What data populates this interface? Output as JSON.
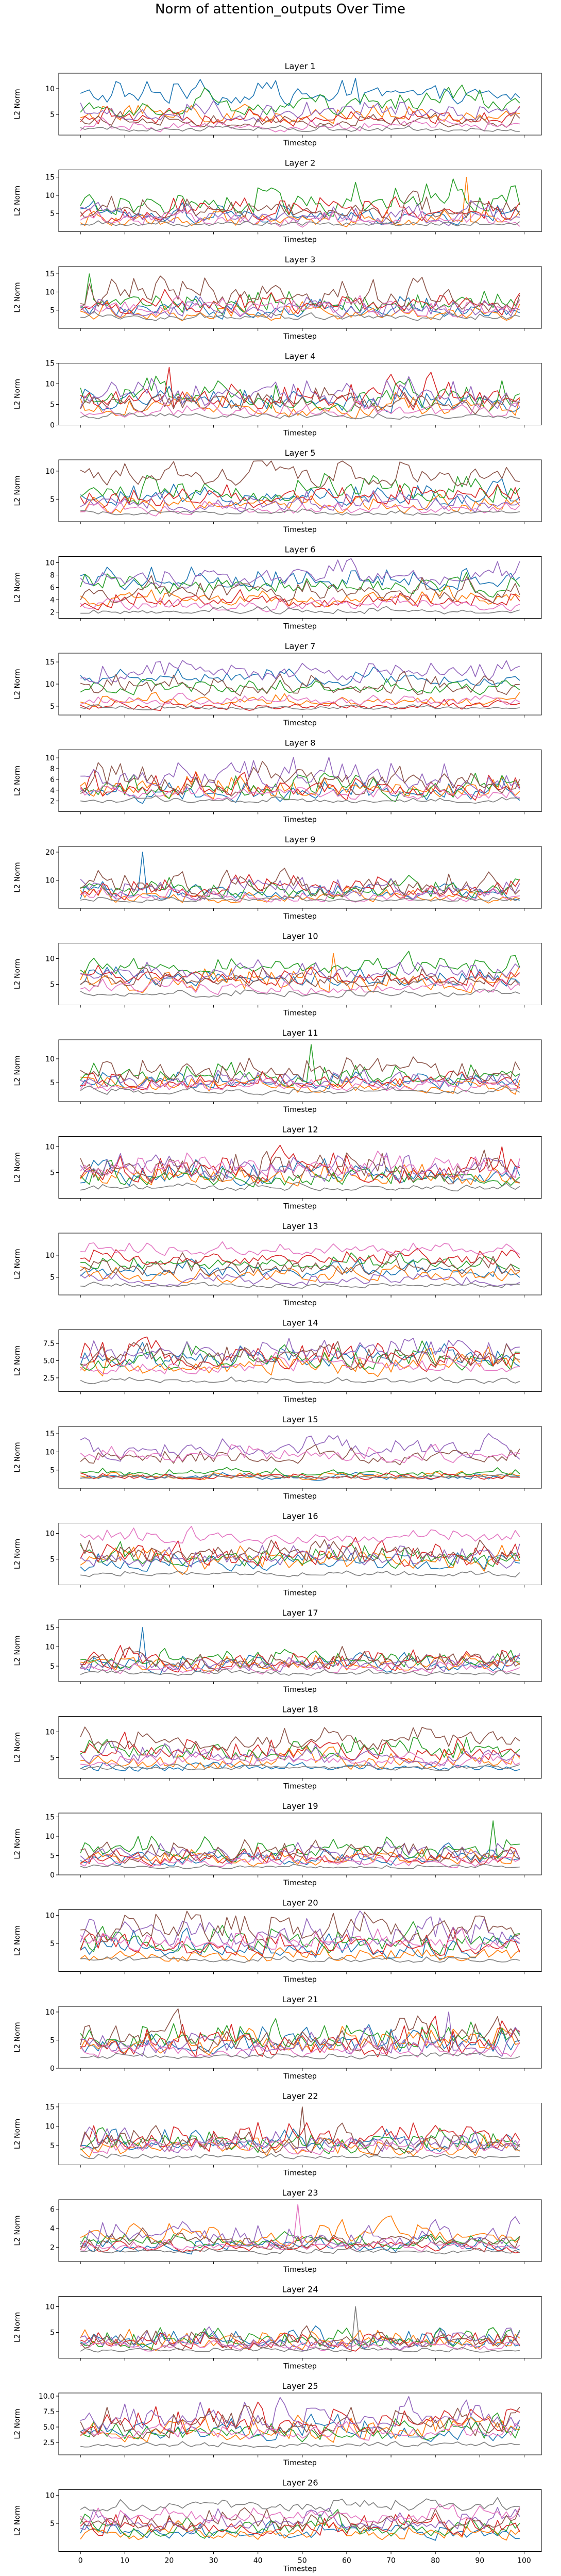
{
  "figure": {
    "title": "Norm of attention_outputs Over Time"
  },
  "colors": [
    "#1f77b4",
    "#ff7f0e",
    "#2ca02c",
    "#d62728",
    "#9467bd",
    "#8c564b",
    "#e377c2",
    "#7f7f7f"
  ],
  "chart_data": [
    {
      "type": "line",
      "title": "Layer 1",
      "xlabel": "Timestep",
      "ylabel": "L2 Norm",
      "xlim": [
        0,
        99
      ],
      "ylim": [
        1,
        13
      ],
      "yticks": [
        5,
        10
      ],
      "xticks": [],
      "grid": false,
      "series_levels": [
        8.5,
        4.5,
        6.5,
        4,
        5,
        3.5,
        2.5,
        2
      ],
      "series_amplitude": [
        2.5,
        1.8,
        2.5,
        1.8,
        2.2,
        1.5,
        1.2,
        0.6
      ],
      "note_peaks": [
        [
          62,
          12
        ]
      ]
    },
    {
      "type": "line",
      "title": "Layer 2",
      "xlabel": "Timestep",
      "ylabel": "L2 Norm",
      "xlim": [
        0,
        99
      ],
      "ylim": [
        0,
        17
      ],
      "yticks": [
        5,
        10,
        15
      ],
      "xticks": [],
      "grid": false,
      "series_levels": [
        4,
        3,
        8,
        5,
        4,
        5,
        3,
        2
      ],
      "series_amplitude": [
        3,
        2.5,
        5,
        3.5,
        3,
        3.5,
        2.5,
        0.8
      ],
      "note_peaks": [
        [
          87,
          15
        ]
      ]
    },
    {
      "type": "line",
      "title": "Layer 3",
      "xlabel": "Timestep",
      "ylabel": "L2 Norm",
      "xlim": [
        0,
        99
      ],
      "ylim": [
        0,
        17
      ],
      "yticks": [
        5,
        10,
        15
      ],
      "xticks": [],
      "grid": false,
      "series_levels": [
        5,
        4,
        6,
        6,
        5,
        8,
        5,
        3
      ],
      "series_amplitude": [
        3,
        2.5,
        3.5,
        3.5,
        3,
        4.5,
        3,
        1.2
      ],
      "note_peaks": [
        [
          2,
          15
        ]
      ]
    },
    {
      "type": "line",
      "title": "Layer 4",
      "xlabel": "Timestep",
      "ylabel": "L2 Norm",
      "xlim": [
        0,
        99
      ],
      "ylim": [
        0,
        15
      ],
      "yticks": [
        0,
        5,
        10,
        15
      ],
      "xticks": [],
      "grid": false,
      "series_levels": [
        5,
        4,
        6,
        6,
        6,
        5,
        3,
        2
      ],
      "series_amplitude": [
        3,
        3,
        4,
        4,
        4,
        3.5,
        2,
        0.8
      ],
      "note_peaks": [
        [
          20,
          14
        ]
      ]
    },
    {
      "type": "line",
      "title": "Layer 5",
      "xlabel": "Timestep",
      "ylabel": "L2 Norm",
      "xlim": [
        0,
        99
      ],
      "ylim": [
        1,
        12
      ],
      "yticks": [
        5,
        10
      ],
      "xticks": [],
      "grid": false,
      "series_levels": [
        5,
        3.5,
        6,
        5,
        4,
        9,
        3,
        2.5
      ],
      "series_amplitude": [
        2,
        1.5,
        2.5,
        2.2,
        2,
        2.5,
        1.2,
        0.6
      ],
      "note_peaks": []
    },
    {
      "type": "line",
      "title": "Layer 6",
      "xlabel": "Timestep",
      "ylabel": "L2 Norm",
      "xlim": [
        0,
        99
      ],
      "ylim": [
        1,
        11
      ],
      "yticks": [
        2,
        4,
        6,
        8,
        10
      ],
      "xticks": [],
      "grid": false,
      "series_levels": [
        7,
        4,
        6,
        3.5,
        7.5,
        5,
        3,
        2
      ],
      "series_amplitude": [
        2,
        1.5,
        2,
        1.5,
        2,
        2,
        1.2,
        0.6
      ],
      "note_peaks": []
    },
    {
      "type": "line",
      "title": "Layer 7",
      "xlabel": "Timestep",
      "ylabel": "L2 Norm",
      "xlim": [
        0,
        99
      ],
      "ylim": [
        3,
        17
      ],
      "yticks": [
        5,
        10,
        15
      ],
      "xticks": [],
      "grid": false,
      "series_levels": [
        11,
        6,
        9,
        5,
        12,
        9,
        6,
        4.5
      ],
      "series_amplitude": [
        2,
        1.5,
        2,
        1.2,
        2.5,
        2.5,
        1.2,
        0.5
      ],
      "note_peaks": []
    },
    {
      "type": "line",
      "title": "Layer 8",
      "xlabel": "Timestep",
      "ylabel": "L2 Norm",
      "xlim": [
        0,
        99
      ],
      "ylim": [
        0,
        11.5
      ],
      "yticks": [
        2,
        4,
        6,
        8,
        10
      ],
      "xticks": [],
      "grid": false,
      "series_levels": [
        3,
        4,
        4,
        4,
        6,
        5,
        3,
        2
      ],
      "series_amplitude": [
        2,
        2.5,
        2.5,
        2.5,
        3,
        3,
        1.5,
        0.6
      ],
      "note_peaks": []
    },
    {
      "type": "line",
      "title": "Layer 9",
      "xlabel": "Timestep",
      "ylabel": "L2 Norm",
      "xlim": [
        0,
        99
      ],
      "ylim": [
        0,
        22
      ],
      "yticks": [
        10,
        20
      ],
      "xticks": [],
      "grid": false,
      "series_levels": [
        5,
        4,
        6,
        6,
        6,
        7,
        4,
        3
      ],
      "series_amplitude": [
        3,
        3,
        4,
        4,
        4,
        5,
        2.5,
        1
      ],
      "note_peaks": [
        [
          14,
          20
        ]
      ]
    },
    {
      "type": "line",
      "title": "Layer 10",
      "xlabel": "Timestep",
      "ylabel": "L2 Norm",
      "xlim": [
        0,
        99
      ],
      "ylim": [
        1,
        13
      ],
      "yticks": [
        5,
        10
      ],
      "xticks": [],
      "grid": false,
      "series_levels": [
        6,
        5,
        8,
        6,
        7,
        6,
        4,
        3
      ],
      "series_amplitude": [
        2,
        2.5,
        2,
        2,
        2,
        2,
        1.5,
        0.8
      ],
      "note_peaks": [
        [
          57,
          11
        ]
      ]
    },
    {
      "type": "line",
      "title": "Layer 11",
      "xlabel": "Timestep",
      "ylabel": "L2 Norm",
      "xlim": [
        0,
        99
      ],
      "ylim": [
        1,
        14
      ],
      "yticks": [
        5,
        10
      ],
      "xticks": [],
      "grid": false,
      "series_levels": [
        5,
        4,
        6,
        5,
        5,
        7,
        4,
        3
      ],
      "series_amplitude": [
        2,
        2,
        2.5,
        2,
        2,
        3,
        1.5,
        0.8
      ],
      "note_peaks": [
        [
          52,
          13
        ]
      ]
    },
    {
      "type": "line",
      "title": "Layer 12",
      "xlabel": "Timestep",
      "ylabel": "L2 Norm",
      "xlim": [
        0,
        99
      ],
      "ylim": [
        0,
        12
      ],
      "yticks": [
        5,
        10
      ],
      "xticks": [],
      "grid": false,
      "series_levels": [
        4,
        4,
        4,
        5,
        5,
        5,
        6,
        2
      ],
      "series_amplitude": [
        2.5,
        2.5,
        2.5,
        3,
        3,
        3,
        2.5,
        0.8
      ],
      "note_peaks": [
        [
          95,
          10
        ]
      ]
    },
    {
      "type": "line",
      "title": "Layer 13",
      "xlabel": "Timestep",
      "ylabel": "L2 Norm",
      "xlim": [
        1,
        99
      ],
      "ylim": [
        1,
        15
      ],
      "yticks": [
        5,
        10
      ],
      "xticks": [],
      "grid": false,
      "series_levels": [
        6,
        5,
        8,
        9,
        4,
        7,
        11,
        3
      ],
      "series_amplitude": [
        2,
        2,
        2,
        2,
        1.5,
        2.5,
        1.5,
        0.6
      ],
      "note_peaks": []
    },
    {
      "type": "line",
      "title": "Layer 14",
      "xlabel": "Timestep",
      "ylabel": "L2 Norm",
      "xlim": [
        0,
        99
      ],
      "ylim": [
        0.5,
        9.5
      ],
      "yticks": [
        2.5,
        5.0,
        7.5
      ],
      "xticks": [],
      "grid": false,
      "series_levels": [
        5,
        4,
        5,
        5,
        6,
        5,
        4,
        2
      ],
      "series_amplitude": [
        1.8,
        1.8,
        2,
        2,
        1.8,
        2,
        1.5,
        0.5
      ],
      "note_peaks": []
    },
    {
      "type": "line",
      "title": "Layer 15",
      "xlabel": "Timestep",
      "ylabel": "L2 Norm",
      "xlim": [
        0,
        99
      ],
      "ylim": [
        0,
        17
      ],
      "yticks": [
        5,
        10,
        15
      ],
      "xticks": [],
      "grid": false,
      "series_levels": [
        3,
        3,
        4,
        3,
        10,
        8,
        9,
        3
      ],
      "series_amplitude": [
        1,
        1,
        1.2,
        1,
        3,
        2.5,
        2.5,
        0.5
      ],
      "note_peaks": []
    },
    {
      "type": "line",
      "title": "Layer 16",
      "xlabel": "Timestep",
      "ylabel": "L2 Norm",
      "xlim": [
        0,
        99
      ],
      "ylim": [
        0,
        12
      ],
      "yticks": [
        5,
        10
      ],
      "xticks": [],
      "grid": false,
      "series_levels": [
        4,
        4,
        5,
        5,
        5,
        6,
        9,
        2
      ],
      "series_amplitude": [
        2,
        2.5,
        2.5,
        2.5,
        2.5,
        2.5,
        1.5,
        0.6
      ],
      "note_peaks": []
    },
    {
      "type": "line",
      "title": "Layer 17",
      "xlabel": "Timestep",
      "ylabel": "L2 Norm",
      "xlim": [
        0,
        99
      ],
      "ylim": [
        1,
        17
      ],
      "yticks": [
        5,
        10,
        15
      ],
      "xticks": [],
      "grid": false,
      "series_levels": [
        5,
        5,
        6,
        6,
        5,
        6,
        4,
        3
      ],
      "series_amplitude": [
        2.5,
        2.5,
        2.5,
        3,
        2.5,
        3,
        1.5,
        0.8
      ],
      "note_peaks": [
        [
          14,
          15
        ]
      ]
    },
    {
      "type": "line",
      "title": "Layer 18",
      "xlabel": "Timestep",
      "ylabel": "L2 Norm",
      "xlim": [
        1,
        99
      ],
      "ylim": [
        1,
        13
      ],
      "yticks": [
        5,
        10
      ],
      "xticks": [],
      "grid": false,
      "series_levels": [
        3,
        4,
        6,
        6,
        5,
        8,
        4,
        3
      ],
      "series_amplitude": [
        1,
        2,
        2.5,
        2.5,
        2,
        2.5,
        1.5,
        0.6
      ],
      "note_peaks": []
    },
    {
      "type": "line",
      "title": "Layer 19",
      "xlabel": "Timestep",
      "ylabel": "L2 Norm",
      "xlim": [
        0,
        99
      ],
      "ylim": [
        0,
        16
      ],
      "yticks": [
        0,
        5,
        10,
        15
      ],
      "xticks": [],
      "grid": false,
      "series_levels": [
        4,
        4,
        6,
        4,
        5,
        5,
        3,
        2
      ],
      "series_amplitude": [
        2.5,
        2.5,
        3,
        2.5,
        3,
        3,
        1.5,
        0.6
      ],
      "note_peaks": [
        [
          93,
          14
        ]
      ]
    },
    {
      "type": "line",
      "title": "Layer 20",
      "xlabel": "Timestep",
      "ylabel": "L2 Norm",
      "xlim": [
        0,
        99
      ],
      "ylim": [
        0,
        11
      ],
      "yticks": [
        5,
        10
      ],
      "xticks": [],
      "grid": false,
      "series_levels": [
        4,
        3,
        5,
        4,
        6,
        7,
        5,
        2
      ],
      "series_amplitude": [
        2.5,
        2,
        2.5,
        2.5,
        3,
        3,
        2,
        0.6
      ],
      "note_peaks": []
    },
    {
      "type": "line",
      "title": "Layer 21",
      "xlabel": "Timestep",
      "ylabel": "L2 Norm",
      "xlim": [
        0,
        99
      ],
      "ylim": [
        0,
        11
      ],
      "yticks": [
        0,
        5,
        10
      ],
      "xticks": [],
      "grid": false,
      "series_levels": [
        4,
        4,
        5,
        4,
        4,
        5,
        3,
        2
      ],
      "series_amplitude": [
        2.5,
        2.5,
        2.5,
        3,
        2.5,
        3,
        1.5,
        0.6
      ],
      "note_peaks": [
        [
          83,
          10
        ]
      ]
    },
    {
      "type": "line",
      "title": "Layer 22",
      "xlabel": "Timestep",
      "ylabel": "L2 Norm",
      "xlim": [
        0,
        99
      ],
      "ylim": [
        0,
        16
      ],
      "yticks": [
        5,
        10,
        15
      ],
      "xticks": [],
      "grid": false,
      "series_levels": [
        5,
        4,
        5,
        6,
        5,
        5,
        4,
        2
      ],
      "series_amplitude": [
        3,
        3,
        3,
        4,
        3,
        3.5,
        2,
        0.8
      ],
      "note_peaks": [
        [
          50,
          15
        ]
      ]
    },
    {
      "type": "line",
      "title": "Layer 23",
      "xlabel": "Timestep",
      "ylabel": "L2 Norm",
      "xlim": [
        0,
        99
      ],
      "ylim": [
        0.5,
        7
      ],
      "yticks": [
        2,
        4,
        6
      ],
      "xticks": [],
      "grid": false,
      "series_levels": [
        2,
        3,
        2.5,
        2,
        3,
        2.5,
        2,
        1.5
      ],
      "series_amplitude": [
        0.8,
        1.2,
        0.8,
        0.8,
        1.5,
        1,
        0.6,
        0.3
      ],
      "note_peaks": [
        [
          49,
          6.5
        ]
      ]
    },
    {
      "type": "line",
      "title": "Layer 24",
      "xlabel": "Timestep",
      "ylabel": "L2 Norm",
      "xlim": [
        0,
        99
      ],
      "ylim": [
        0,
        12
      ],
      "yticks": [
        5,
        10
      ],
      "xticks": [],
      "grid": false,
      "series_levels": [
        3,
        3,
        3,
        3,
        3,
        3,
        2,
        1.5
      ],
      "series_amplitude": [
        2,
        2,
        2,
        2,
        2,
        2,
        1,
        0.5
      ],
      "note_peaks": [
        [
          62,
          10
        ]
      ]
    },
    {
      "type": "line",
      "title": "Layer 25",
      "xlabel": "Timestep",
      "ylabel": "L2 Norm",
      "xlim": [
        0,
        99
      ],
      "ylim": [
        0.5,
        10.5
      ],
      "yticks": [
        2.5,
        5.0,
        7.5,
        10.0
      ],
      "xticks": [],
      "grid": false,
      "series_levels": [
        4,
        4,
        4,
        5,
        6,
        5,
        4,
        2
      ],
      "series_amplitude": [
        2,
        2,
        2,
        2.5,
        2.5,
        2.5,
        1.5,
        0.5
      ],
      "note_peaks": []
    },
    {
      "type": "line",
      "title": "Layer 26",
      "xlabel": "Timestep",
      "ylabel": "L2 Norm",
      "xlim": [
        0,
        99
      ],
      "ylim": [
        0,
        11
      ],
      "yticks": [
        5,
        10
      ],
      "xticks": [
        0,
        10,
        20,
        30,
        40,
        50,
        60,
        70,
        80,
        90,
        100
      ],
      "grid": false,
      "series_levels": [
        3,
        3,
        4,
        4,
        5,
        5,
        6,
        8
      ],
      "series_amplitude": [
        1.5,
        1.5,
        2,
        2,
        2,
        2,
        1.5,
        1.2
      ],
      "note_peaks": []
    }
  ]
}
